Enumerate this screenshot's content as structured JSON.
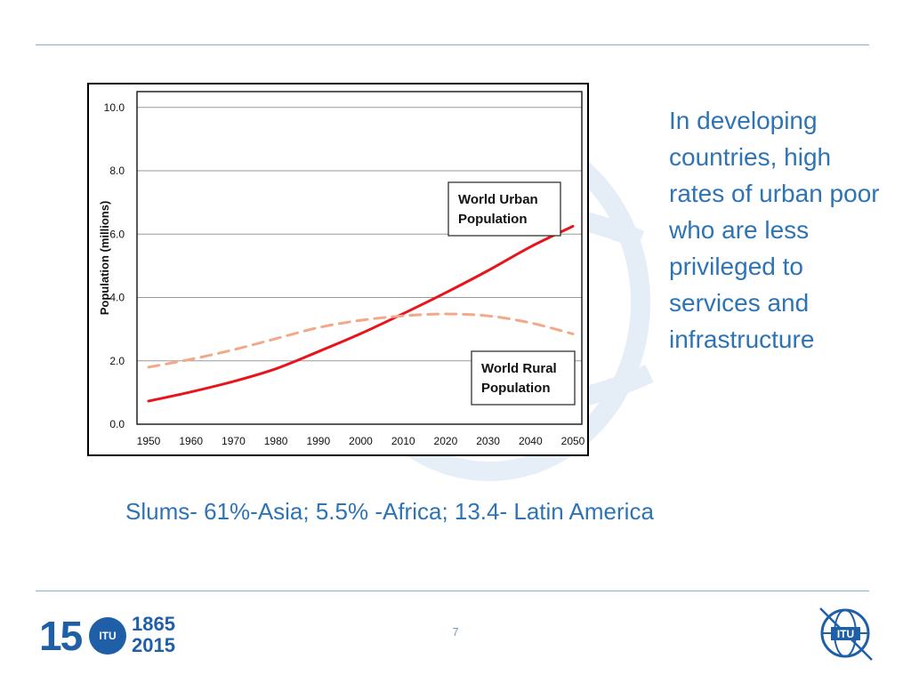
{
  "side_text": "In developing countries, high rates of urban poor who are less privileged to services and infrastructure",
  "slums_text": "Slums- 61%-Asia; 5.5% -Africa; 13.4- Latin America",
  "page_number": "7",
  "logo": {
    "number": "15",
    "circle_text": "ITU",
    "years": [
      "1865",
      "2015"
    ],
    "itu_text": "ITU"
  },
  "colors": {
    "accent": "#2e74b5",
    "rule": "#7fb3d5",
    "urban": "#e8141b",
    "rural": "#f2a98a",
    "brand": "#1f5fa8"
  },
  "chart_data": {
    "type": "line",
    "ylabel": "Population (millions)",
    "xlabel": "",
    "ylim": [
      0,
      10.5
    ],
    "xlim": [
      1950,
      2050
    ],
    "y_ticks": [
      "0.0",
      "2.0",
      "4.0",
      "6.0",
      "8.0",
      "10.0"
    ],
    "x_ticks": [
      "1950",
      "1960",
      "1970",
      "1980",
      "1990",
      "2000",
      "2010",
      "2020",
      "2030",
      "2040",
      "2050"
    ],
    "grid": true,
    "series": [
      {
        "name": "World Urban Population",
        "style": "solid",
        "x": [
          1950,
          1960,
          1970,
          1980,
          1990,
          2000,
          2010,
          2020,
          2030,
          2040,
          2050
        ],
        "y": [
          0.73,
          1.02,
          1.35,
          1.75,
          2.29,
          2.86,
          3.49,
          4.15,
          4.85,
          5.6,
          6.25
        ]
      },
      {
        "name": "World Rural Population",
        "style": "dashed",
        "x": [
          1950,
          1960,
          1970,
          1980,
          1990,
          2000,
          2010,
          2020,
          2030,
          2040,
          2050
        ],
        "y": [
          1.8,
          2.05,
          2.35,
          2.7,
          3.05,
          3.28,
          3.42,
          3.48,
          3.42,
          3.2,
          2.85
        ]
      }
    ],
    "annotations": [
      {
        "text": "World Urban Population",
        "lines": [
          "World  Urban",
          "Population"
        ]
      },
      {
        "text": "World Rural Population",
        "lines": [
          "World Rural",
          "Population"
        ]
      }
    ]
  }
}
